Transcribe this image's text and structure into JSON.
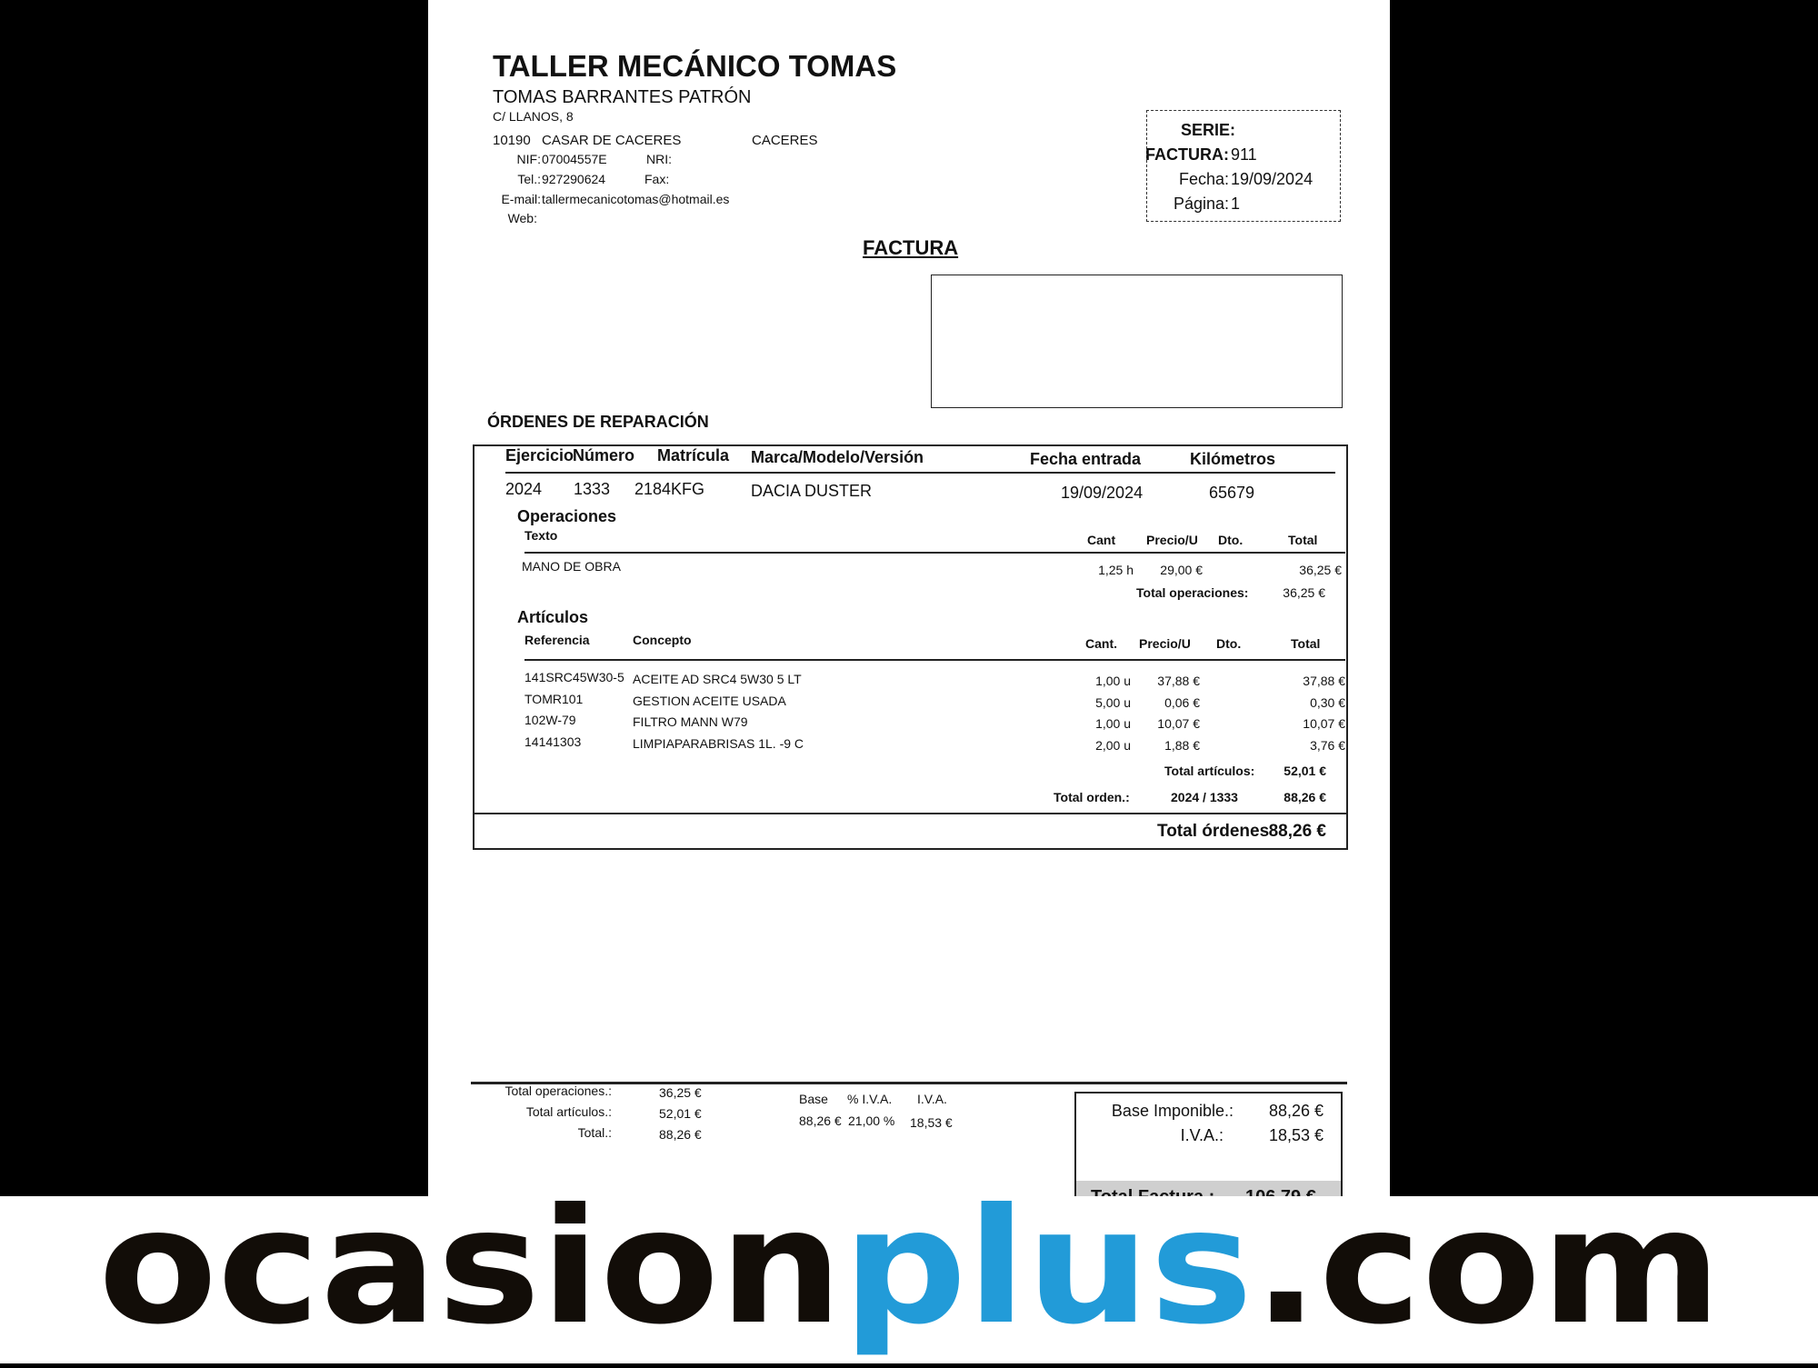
{
  "company": {
    "name": "TALLER MECÁNICO TOMAS",
    "owner": "TOMAS BARRANTES PATRÓN",
    "address": "C/ LLANOS, 8",
    "postal": "10190",
    "city": "CASAR DE CACERES",
    "province": "CACERES",
    "nif_label": "NIF:",
    "nif": "07004557E",
    "nri_label": "NRI:",
    "tel_label": "Tel.:",
    "tel": "927290624",
    "fax_label": "Fax:",
    "email_label": "E-mail:",
    "email": "tallermecanicotomas@hotmail.es",
    "web_label": "Web:"
  },
  "invoice_box": {
    "serie_label": "SERIE:",
    "factura_label": "FACTURA:",
    "factura": "911",
    "fecha_label": "Fecha:",
    "fecha": "19/09/2024",
    "pagina_label": "Página:",
    "pagina": "1"
  },
  "doc_title": "FACTURA",
  "orders_title": "ÓRDENES DE REPARACIÓN",
  "order": {
    "headers": [
      "Ejercicio",
      "Número",
      "Matrícula",
      "Marca/Modelo/Versión",
      "Fecha entrada",
      "Kilómetros"
    ],
    "values": [
      "2024",
      "1333",
      "2184KFG",
      "DACIA DUSTER",
      "19/09/2024",
      "65679"
    ]
  },
  "operaciones": {
    "title": "Operaciones",
    "headers": [
      "Texto",
      "Cant",
      "Precio/U",
      "Dto.",
      "Total"
    ],
    "rows": [
      {
        "texto": "MANO DE OBRA",
        "cant": "1,25 h",
        "precio": "29,00 €",
        "total": "36,25 €"
      }
    ],
    "total_label": "Total operaciones:",
    "total": "36,25 €"
  },
  "articulos": {
    "title": "Artículos",
    "headers": [
      "Referencia",
      "Concepto",
      "Cant.",
      "Precio/U",
      "Dto.",
      "Total"
    ],
    "rows": [
      {
        "ref": "141SRC45W30-5",
        "concepto": "ACEITE AD SRC4 5W30 5 LT",
        "cant": "1,00 u",
        "precio": "37,88 €",
        "total": "37,88 €"
      },
      {
        "ref": "TOMR101",
        "concepto": "GESTION ACEITE USADA",
        "cant": "5,00 u",
        "precio": "0,06 €",
        "total": "0,30 €"
      },
      {
        "ref": "102W-79",
        "concepto": "FILTRO MANN W79",
        "cant": "1,00 u",
        "precio": "10,07 €",
        "total": "10,07 €"
      },
      {
        "ref": "14141303",
        "concepto": "LIMPIAPARABRISAS 1L. -9 C",
        "cant": "2,00 u",
        "precio": "1,88 €",
        "total": "3,76 €"
      }
    ],
    "total_label": "Total artículos:",
    "total": "52,01 €"
  },
  "total_orden": {
    "label": "Total orden.:",
    "ref": "2024 / 1333",
    "value": "88,26 €"
  },
  "total_ordenes": {
    "label": "Total órdenes",
    "value": "88,26 €"
  },
  "footer": {
    "ops_label": "Total operaciones.:",
    "ops": "36,25 €",
    "art_label": "Total artículos.:",
    "art": "52,01 €",
    "total_label": "Total.:",
    "total": "88,26 €",
    "iva_headers": [
      "Base",
      "% I.V.A.",
      "I.V.A."
    ],
    "iva_values": [
      "88,26 €",
      "21,00 %",
      "18,53 €"
    ],
    "base_label": "Base Imponible.:",
    "base": "88,26 €",
    "iva_label": "I.V.A.:",
    "iva": "18,53 €",
    "tf_label": "Total Factura :",
    "tf": "106,79 €"
  },
  "watermark": {
    "part1": "ocasion",
    "part2": "plus",
    "part3": ".com",
    "color_dark": "#120d08",
    "color_blue": "#229bd8"
  }
}
